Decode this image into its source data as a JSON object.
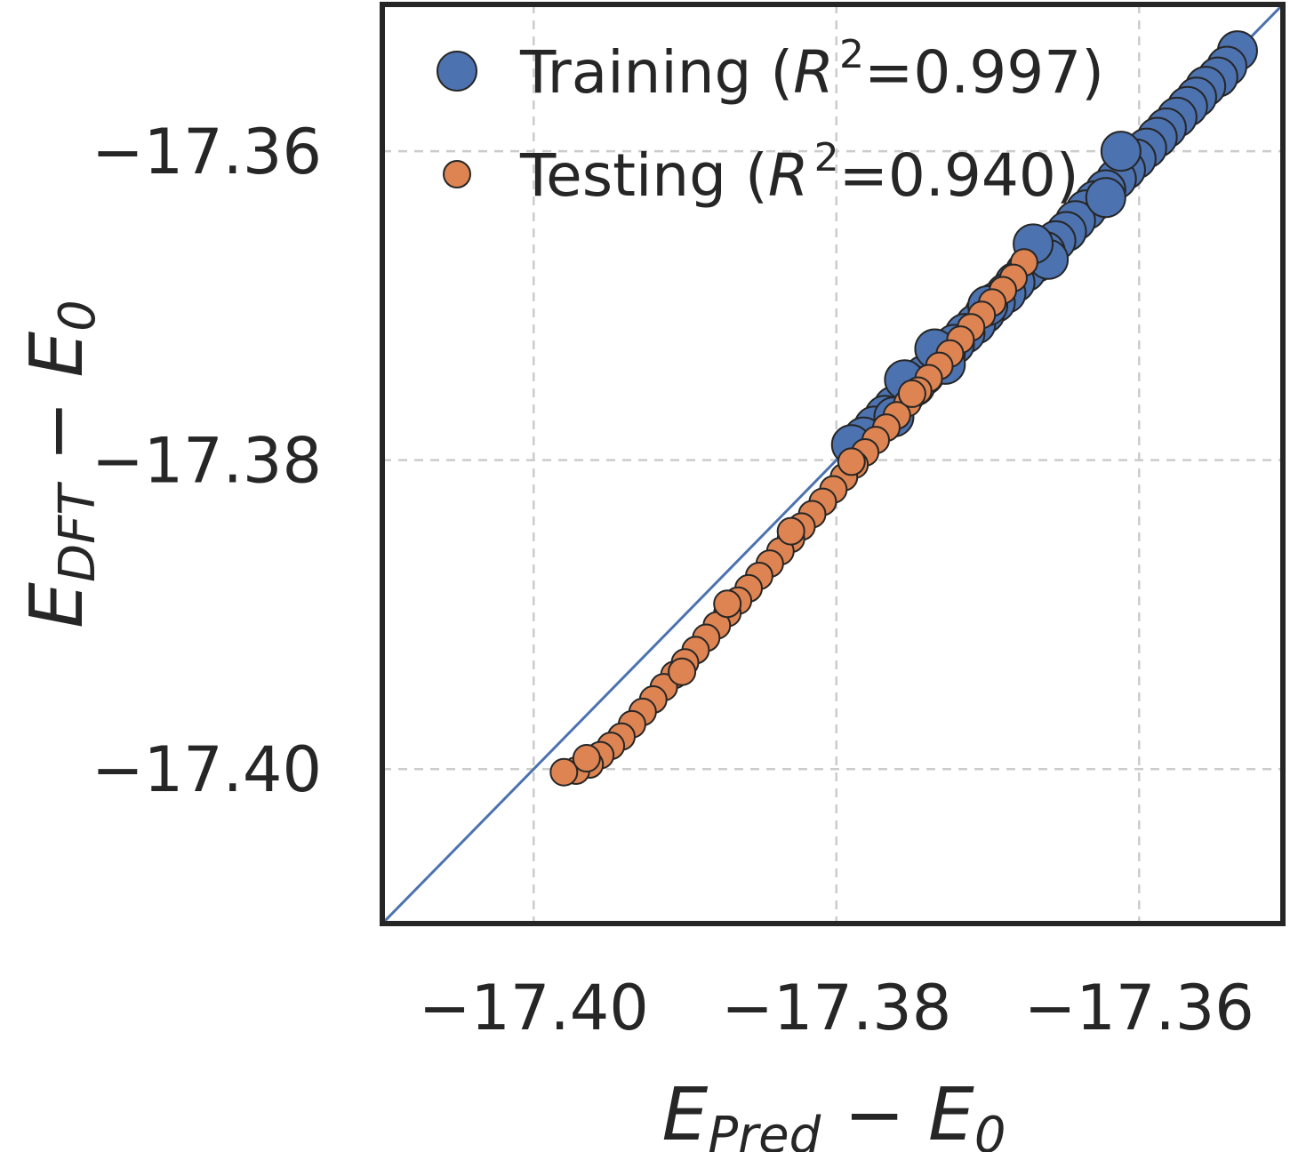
{
  "chart_data": {
    "type": "scatter",
    "xlabel": {
      "main": "E",
      "sub": "Pred",
      "op": " − ",
      "main2": "E",
      "sub2": "0"
    },
    "ylabel": {
      "main": "E",
      "sub": "DFT",
      "op": " − ",
      "main2": "E",
      "sub2": "0"
    },
    "xlim": [
      -17.41,
      -17.3505
    ],
    "ylim": [
      -17.41,
      -17.3505
    ],
    "xticks": [
      -17.4,
      -17.38,
      -17.36
    ],
    "yticks": [
      -17.4,
      -17.38,
      -17.36
    ],
    "xtick_labels": [
      "−17.40",
      "−17.38",
      "−17.36"
    ],
    "ytick_labels": [
      "−17.40",
      "−17.38",
      "−17.36"
    ],
    "grid": true,
    "grid_style": "dashed",
    "diagonal": true,
    "legend_position": "top-left",
    "colors": {
      "training": "#4C72B0",
      "testing": "#DD8452",
      "diagonal": "#4C72B0",
      "edge": "#262626",
      "grid": "#cccccc",
      "frame": "#262626"
    },
    "series": [
      {
        "name": "Training",
        "legend": {
          "prefix": "Training (",
          "var": "R",
          "sup": "2",
          "suffix": "=0.997)"
        },
        "color": "#4C72B0",
        "marker_size": "large",
        "points": [
          [
            -17.3535,
            -17.3535
          ],
          [
            -17.3542,
            -17.3545
          ],
          [
            -17.3548,
            -17.3552
          ],
          [
            -17.3556,
            -17.3558
          ],
          [
            -17.3562,
            -17.3565
          ],
          [
            -17.3568,
            -17.3571
          ],
          [
            -17.3575,
            -17.3578
          ],
          [
            -17.3582,
            -17.3585
          ],
          [
            -17.3588,
            -17.3591
          ],
          [
            -17.3595,
            -17.3598
          ],
          [
            -17.3602,
            -17.3605
          ],
          [
            -17.3609,
            -17.3612
          ],
          [
            -17.3615,
            -17.3618
          ],
          [
            -17.3622,
            -17.3625
          ],
          [
            -17.3629,
            -17.3632
          ],
          [
            -17.3635,
            -17.3638
          ],
          [
            -17.3642,
            -17.3645
          ],
          [
            -17.3648,
            -17.3652
          ],
          [
            -17.3655,
            -17.3658
          ],
          [
            -17.3662,
            -17.3665
          ],
          [
            -17.3668,
            -17.3672
          ],
          [
            -17.3675,
            -17.3678
          ],
          [
            -17.3682,
            -17.3685
          ],
          [
            -17.3688,
            -17.3692
          ],
          [
            -17.3695,
            -17.3698
          ],
          [
            -17.3702,
            -17.3705
          ],
          [
            -17.3708,
            -17.3712
          ],
          [
            -17.3715,
            -17.3718
          ],
          [
            -17.3722,
            -17.3725
          ],
          [
            -17.3728,
            -17.3731
          ],
          [
            -17.3735,
            -17.3738
          ],
          [
            -17.3742,
            -17.3745
          ],
          [
            -17.3748,
            -17.3752
          ],
          [
            -17.3755,
            -17.3758
          ],
          [
            -17.3762,
            -17.3765
          ],
          [
            -17.3768,
            -17.3771
          ],
          [
            -17.3775,
            -17.3778
          ],
          [
            -17.3782,
            -17.3785
          ],
          [
            -17.379,
            -17.379
          ],
          [
            -17.37,
            -17.37
          ],
          [
            -17.3728,
            -17.3738
          ],
          [
            -17.3735,
            -17.3728
          ],
          [
            -17.366,
            -17.367
          ],
          [
            -17.367,
            -17.366
          ],
          [
            -17.3755,
            -17.3748
          ],
          [
            -17.3762,
            -17.3772
          ],
          [
            -17.3612,
            -17.36
          ],
          [
            -17.3622,
            -17.363
          ]
        ]
      },
      {
        "name": "Testing",
        "legend": {
          "prefix": "Testing (",
          "var": "R",
          "sup": "2",
          "suffix": "=0.940)"
        },
        "color": "#DD8452",
        "marker_size": "small",
        "points": [
          [
            -17.3676,
            -17.3672
          ],
          [
            -17.3683,
            -17.3682
          ],
          [
            -17.369,
            -17.369
          ],
          [
            -17.3697,
            -17.3698
          ],
          [
            -17.3704,
            -17.3706
          ],
          [
            -17.3711,
            -17.3714
          ],
          [
            -17.3718,
            -17.3722
          ],
          [
            -17.3725,
            -17.3731
          ],
          [
            -17.3732,
            -17.3739
          ],
          [
            -17.3739,
            -17.3747
          ],
          [
            -17.3746,
            -17.3755
          ],
          [
            -17.3753,
            -17.3763
          ],
          [
            -17.376,
            -17.3771
          ],
          [
            -17.3767,
            -17.3779
          ],
          [
            -17.3774,
            -17.3787
          ],
          [
            -17.3781,
            -17.3795
          ],
          [
            -17.3788,
            -17.3803
          ],
          [
            -17.3795,
            -17.3811
          ],
          [
            -17.3802,
            -17.3819
          ],
          [
            -17.3809,
            -17.3827
          ],
          [
            -17.3816,
            -17.3835
          ],
          [
            -17.3823,
            -17.3843
          ],
          [
            -17.383,
            -17.3851
          ],
          [
            -17.3837,
            -17.3859
          ],
          [
            -17.3844,
            -17.3867
          ],
          [
            -17.3851,
            -17.3875
          ],
          [
            -17.3858,
            -17.3883
          ],
          [
            -17.3865,
            -17.3891
          ],
          [
            -17.3872,
            -17.3899
          ],
          [
            -17.3879,
            -17.3907
          ],
          [
            -17.3886,
            -17.3915
          ],
          [
            -17.3893,
            -17.3923
          ],
          [
            -17.39,
            -17.3931
          ],
          [
            -17.3907,
            -17.3939
          ],
          [
            -17.3914,
            -17.3947
          ],
          [
            -17.3921,
            -17.3955
          ],
          [
            -17.3928,
            -17.3963
          ],
          [
            -17.3935,
            -17.3971
          ],
          [
            -17.3942,
            -17.3979
          ],
          [
            -17.3949,
            -17.3985
          ],
          [
            -17.3956,
            -17.3991
          ],
          [
            -17.3963,
            -17.3997
          ],
          [
            -17.3972,
            -17.4001
          ],
          [
            -17.398,
            -17.4002
          ],
          [
            -17.3965,
            -17.3993
          ],
          [
            -17.3902,
            -17.3937
          ],
          [
            -17.3872,
            -17.3893
          ],
          [
            -17.383,
            -17.3846
          ],
          [
            -17.379,
            -17.3801
          ],
          [
            -17.375,
            -17.3757
          ]
        ]
      }
    ]
  }
}
